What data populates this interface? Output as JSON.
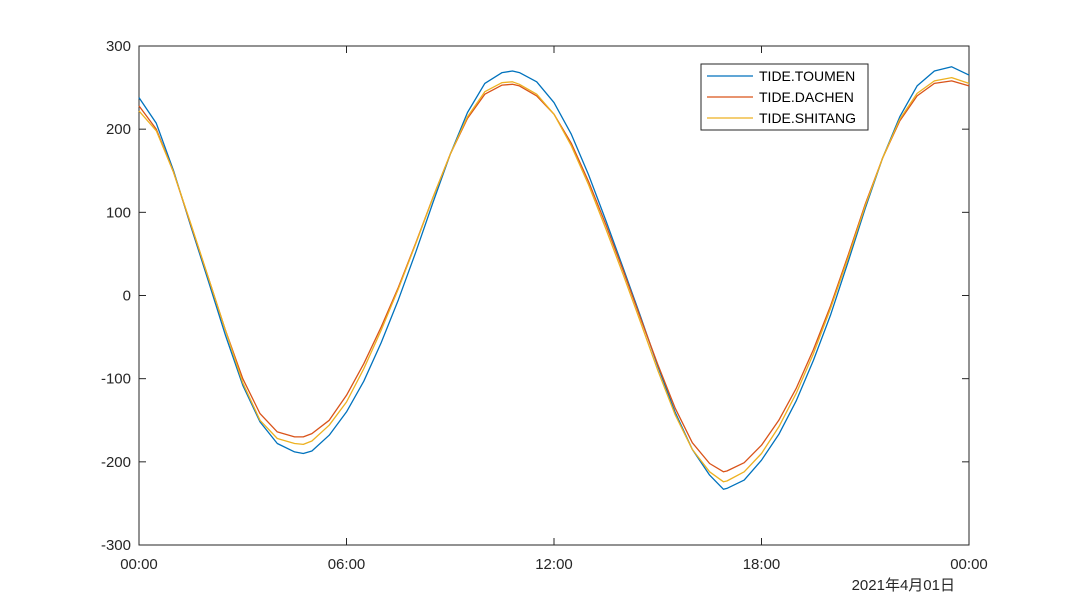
{
  "chart_data": {
    "type": "line",
    "title": "",
    "xlabel": "",
    "ylabel": "",
    "x_tick_labels": [
      "00:00",
      "06:00",
      "12:00",
      "18:00",
      "00:00"
    ],
    "x_tick_hours": [
      0,
      6,
      12,
      18,
      24
    ],
    "x_range_hours": [
      0,
      24
    ],
    "date_label": "2021年4月01日",
    "ylim": [
      -300,
      300
    ],
    "y_ticks": [
      -300,
      -200,
      -100,
      0,
      100,
      200,
      300
    ],
    "y_tick_labels": [
      "-300",
      "-200",
      "-100",
      "0",
      "100",
      "200",
      "300"
    ],
    "grid": false,
    "legend_position": "top-right",
    "series": [
      {
        "name": "TIDE.TOUMEN",
        "color": "#0072BD",
        "x": [
          0,
          0.5,
          1,
          1.5,
          2,
          2.5,
          3,
          3.5,
          4,
          4.5,
          4.75,
          5,
          5.5,
          6,
          6.5,
          7,
          7.5,
          8,
          8.5,
          9,
          9.5,
          10,
          10.5,
          10.8,
          11,
          11.5,
          12,
          12.5,
          13,
          13.5,
          14,
          14.5,
          15,
          15.5,
          16,
          16.5,
          16.9,
          17,
          17.5,
          18,
          18.5,
          19,
          19.5,
          20,
          20.5,
          21,
          21.5,
          22,
          22.5,
          23,
          23.5,
          24
        ],
        "y": [
          238,
          207,
          150,
          83,
          18,
          -48,
          -108,
          -152,
          -178,
          -188,
          -190,
          -187,
          -168,
          -140,
          -103,
          -57,
          -5,
          52,
          112,
          170,
          220,
          255,
          268,
          270,
          268,
          257,
          232,
          194,
          145,
          90,
          33,
          -25,
          -85,
          -140,
          -185,
          -216,
          -233,
          -232,
          -222,
          -198,
          -167,
          -127,
          -78,
          -23,
          40,
          105,
          165,
          215,
          252,
          270,
          275,
          265
        ]
      },
      {
        "name": "TIDE.DACHEN",
        "color": "#D95319",
        "x": [
          0,
          0.5,
          1,
          1.5,
          2,
          2.5,
          3,
          3.5,
          4,
          4.5,
          4.75,
          5,
          5.5,
          6,
          6.5,
          7,
          7.5,
          8,
          8.5,
          9,
          9.5,
          10,
          10.5,
          10.8,
          11,
          11.5,
          12,
          12.5,
          13,
          13.5,
          14,
          14.5,
          15,
          15.5,
          16,
          16.5,
          16.9,
          17,
          17.5,
          18,
          18.5,
          19,
          19.5,
          20,
          20.5,
          21,
          21.5,
          22,
          22.5,
          23,
          23.5,
          24
        ],
        "y": [
          228,
          200,
          148,
          85,
          22,
          -42,
          -100,
          -142,
          -164,
          -170,
          -170,
          -166,
          -150,
          -120,
          -82,
          -38,
          10,
          63,
          118,
          170,
          213,
          242,
          253,
          254,
          252,
          240,
          218,
          183,
          137,
          85,
          30,
          -27,
          -83,
          -135,
          -177,
          -202,
          -212,
          -211,
          -201,
          -180,
          -150,
          -112,
          -65,
          -12,
          48,
          110,
          165,
          210,
          240,
          255,
          258,
          252
        ]
      },
      {
        "name": "TIDE.SHITANG",
        "color": "#EDB120",
        "x": [
          0,
          0.5,
          1,
          1.5,
          2,
          2.5,
          3,
          3.5,
          4,
          4.5,
          4.75,
          5,
          5.5,
          6,
          6.5,
          7,
          7.5,
          8,
          8.5,
          9,
          9.5,
          10,
          10.5,
          10.8,
          11,
          11.5,
          12,
          12.5,
          13,
          13.5,
          14,
          14.5,
          15,
          15.5,
          16,
          16.5,
          16.9,
          17,
          17.5,
          18,
          18.5,
          19,
          19.5,
          20,
          20.5,
          21,
          21.5,
          22,
          22.5,
          23,
          23.5,
          24
        ],
        "y": [
          222,
          198,
          148,
          86,
          22,
          -42,
          -105,
          -150,
          -172,
          -178,
          -179,
          -175,
          -156,
          -128,
          -88,
          -42,
          8,
          62,
          118,
          170,
          215,
          245,
          256,
          257,
          254,
          242,
          218,
          180,
          133,
          80,
          25,
          -32,
          -90,
          -143,
          -185,
          -212,
          -224,
          -223,
          -212,
          -190,
          -158,
          -118,
          -70,
          -15,
          45,
          108,
          165,
          212,
          243,
          258,
          262,
          255
        ]
      }
    ]
  }
}
